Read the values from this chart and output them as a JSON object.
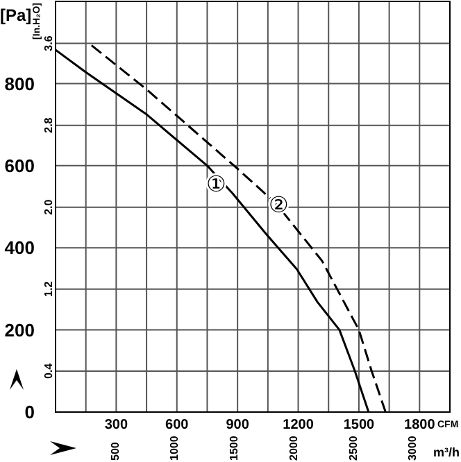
{
  "chart_data": {
    "type": "line",
    "ylabel": "[Pa]",
    "y2label": "[In.H₂O]",
    "xlabel": "CFM",
    "x2label": "m³/h",
    "xlim": [
      0,
      1950
    ],
    "xticks": [
      {
        "value": 150,
        "label": null
      },
      300,
      {
        "value": 450,
        "label": null
      },
      600,
      {
        "value": 750,
        "label": null
      },
      900,
      {
        "value": 1050,
        "label": null
      },
      1200,
      {
        "value": 1350,
        "label": null
      },
      1500,
      {
        "value": 1650,
        "label": null
      },
      1800,
      {
        "value": 1950,
        "label": null
      }
    ],
    "x2lim": [
      0,
      3313
    ],
    "x2ticks": [
      500,
      1000,
      1500,
      2000,
      2500,
      3000
    ],
    "ylim": [
      0,
      1000
    ],
    "yticks": [
      0,
      200,
      400,
      600,
      800
    ],
    "y2lim": [
      0,
      4.01
    ],
    "y2ticks": [
      0.4,
      1.2,
      {
        "value": 2,
        "label": "2.0"
      },
      2.8,
      3.6
    ],
    "grid": true,
    "legend": false,
    "marker": "none",
    "series": [
      {
        "name": "①",
        "color": "#000000",
        "line_style": "solid",
        "x": [
          0,
          148,
          447,
          750,
          876,
          1044,
          1193,
          1295,
          1404,
          1480,
          1548
        ],
        "values": [
          882,
          828,
          726,
          600,
          532,
          432,
          348,
          268,
          200,
          100,
          0
        ]
      },
      {
        "name": "②",
        "color": "#000000",
        "line_style": "dashed",
        "x": [
          178,
          447,
          885,
          1090,
          1318,
          1500,
          1563,
          1632
        ],
        "values": [
          893,
          787,
          599,
          508,
          368,
          200,
          100,
          0
        ]
      }
    ]
  }
}
